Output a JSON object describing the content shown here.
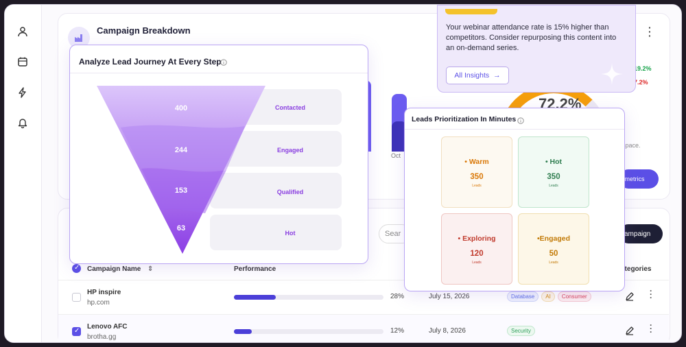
{
  "sidebar": {
    "icons": [
      "user-icon",
      "calendar-icon",
      "lightning-icon",
      "bell-icon"
    ]
  },
  "campaign_breakdown": {
    "title": "Campaign Breakdown",
    "month_label": "Oct",
    "gauge_value": "72.2%",
    "stat_up": "19.2%",
    "stat_down": "7.2%",
    "space_text": "space.",
    "metrics_button": "l metrics"
  },
  "insight": {
    "text": "Your webinar attendance rate is 15% higher than competitors. Consider repurposing this content into an on-demand series.",
    "button_label": "All Insights",
    "button_arrow": "→"
  },
  "funnel": {
    "title": "Analyze Lead Journey At Every Step",
    "stages": [
      {
        "label": "Contacted",
        "value": "400"
      },
      {
        "label": "Engaged",
        "value": "244"
      },
      {
        "label": "Qualified",
        "value": "153"
      },
      {
        "label": "Hot",
        "value": "63"
      }
    ]
  },
  "leads": {
    "title": "Leads Prioritization In Minutes",
    "tiles": [
      {
        "name": "• Warm",
        "value": "350",
        "unit": "Leads",
        "color": "#d97706",
        "bg": "#fdf9f1",
        "border": "#f1dfc0"
      },
      {
        "name": "• Hot",
        "value": "350",
        "unit": "Leads",
        "color": "#2f7d4f",
        "bg": "#f1faf4",
        "border": "#bfe5cc"
      },
      {
        "name": "• Exploring",
        "value": "120",
        "unit": "Leads",
        "color": "#c0392b",
        "bg": "#fbf0f0",
        "border": "#efc6c2"
      },
      {
        "name": "•Engaged",
        "value": "50",
        "unit": "Leads",
        "color": "#c27a06",
        "bg": "#fdf7e8",
        "border": "#f0dfb0"
      }
    ]
  },
  "table": {
    "search_placeholder": "Sear",
    "new_campaign_button": "ampaign",
    "headers": {
      "name": "Campaign Name",
      "performance": "Performance",
      "categories": "ategories"
    },
    "rows": [
      {
        "name": "HP inspire",
        "domain": "hp.com",
        "progress": 28,
        "progress_label": "28%",
        "date": "July 15, 2026",
        "selected": false,
        "tags": [
          {
            "text": "Database",
            "color": "#5b6ee6",
            "bg": "#eef0fd",
            "border": "#cdd4f7"
          },
          {
            "text": "AI",
            "color": "#d38a0c",
            "bg": "#fdf5e6",
            "border": "#f2dcaf"
          },
          {
            "text": "Consumer",
            "color": "#d9435a",
            "bg": "#fdeef0",
            "border": "#f5c8cf"
          }
        ]
      },
      {
        "name": "Lenovo AFC",
        "domain": "brotha.gg",
        "progress": 12,
        "progress_label": "12%",
        "date": "July 8, 2026",
        "selected": true,
        "tags": [
          {
            "text": "Security",
            "color": "#2e9f5a",
            "bg": "#ecf8f0",
            "border": "#bfe6cc"
          }
        ]
      }
    ]
  },
  "colors": {
    "accent": "#5b4fe6",
    "funnel_top": "#d9c3fb",
    "funnel_bottom": "#8b3fe6"
  }
}
